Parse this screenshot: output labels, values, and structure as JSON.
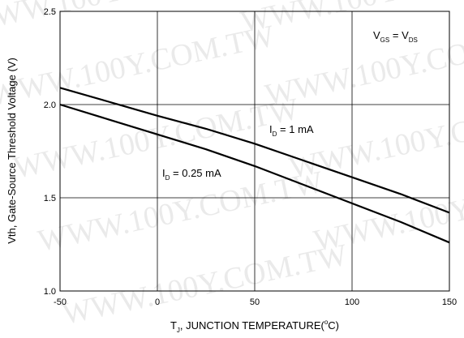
{
  "chart_data": {
    "type": "line",
    "title": "",
    "xlabel": {
      "main": "T",
      "sub": "J",
      "rest": ", JUNCTION TEMPERATURE(",
      "sup": "o",
      "end": "C)"
    },
    "ylabel": "Vth, Gate-Source Threshold Voltage (V)",
    "xlim": [
      -50,
      150
    ],
    "ylim": [
      1.0,
      2.5
    ],
    "xticks": [
      -50,
      0,
      50,
      100,
      150
    ],
    "yticks": [
      1.0,
      1.5,
      2.0,
      2.5
    ],
    "xtick_labels": [
      "-50",
      "0",
      "50",
      "100",
      "150"
    ],
    "ytick_labels": [
      "1.0",
      "1.5",
      "2.0",
      "2.5"
    ],
    "grid": true,
    "series": [
      {
        "label_main": "I",
        "label_sub": "D",
        "label_rest": " = 1 mA",
        "x": [
          -50,
          -25,
          0,
          25,
          50,
          75,
          100,
          125,
          150
        ],
        "y": [
          2.09,
          2.015,
          1.94,
          1.87,
          1.79,
          1.7,
          1.61,
          1.52,
          1.42
        ]
      },
      {
        "label_main": "I",
        "label_sub": "D",
        "label_rest": " = 0.25 mA",
        "x": [
          -50,
          -25,
          0,
          25,
          50,
          75,
          100,
          125,
          150
        ],
        "y": [
          2.0,
          1.92,
          1.84,
          1.76,
          1.67,
          1.57,
          1.47,
          1.37,
          1.26
        ]
      }
    ],
    "annotation": {
      "v1": "V",
      "s1": "GS",
      "eq": " = ",
      "v2": "V",
      "s2": "DS"
    },
    "watermark": "WWW.100Y.COM.TW",
    "colors": {
      "line": "#000000",
      "grid": "#000000",
      "watermark": "#d9d9d9"
    }
  }
}
